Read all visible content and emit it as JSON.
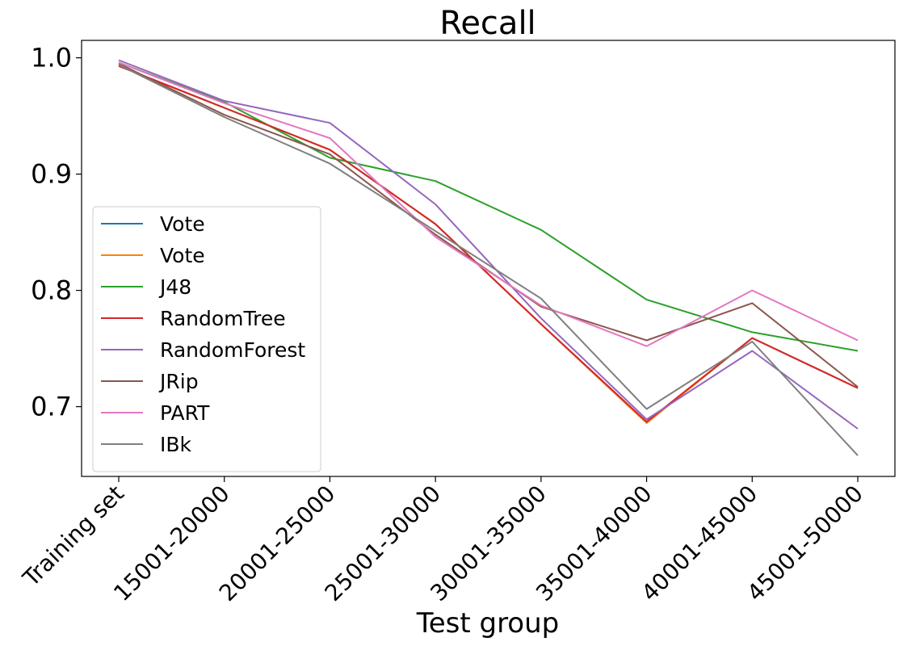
{
  "chart_data": {
    "type": "line",
    "title": "Recall",
    "xlabel": "Test group",
    "ylabel": "",
    "categories": [
      "Training set",
      "15001-20000",
      "20001-25000",
      "25001-30000",
      "30001-35000",
      "35001-40000",
      "40001-45000",
      "45001-50000"
    ],
    "ylim": [
      0.64,
      1.015
    ],
    "yticks": [
      0.7,
      0.8,
      0.9,
      1.0
    ],
    "ytick_labels": [
      "0.7",
      "0.8",
      "0.9",
      "1.0"
    ],
    "grid": false,
    "legend_position": "lower-left",
    "series": [
      {
        "name": "Vote",
        "color": "#1f77b4",
        "values": [
          0.993,
          0.957,
          0.921,
          0.857,
          0.771,
          0.686,
          0.759,
          0.716
        ]
      },
      {
        "name": "Vote",
        "color": "#ff7f0e",
        "values": [
          0.993,
          0.957,
          0.921,
          0.857,
          0.771,
          0.686,
          0.759,
          0.716
        ]
      },
      {
        "name": "J48",
        "color": "#2ca02c",
        "values": [
          0.996,
          0.962,
          0.914,
          0.894,
          0.852,
          0.792,
          0.764,
          0.748
        ]
      },
      {
        "name": "RandomTree",
        "color": "#d62728",
        "values": [
          0.993,
          0.957,
          0.921,
          0.857,
          0.771,
          0.687,
          0.759,
          0.716
        ]
      },
      {
        "name": "RandomForest",
        "color": "#9467bd",
        "values": [
          0.998,
          0.963,
          0.944,
          0.874,
          0.776,
          0.689,
          0.748,
          0.681
        ]
      },
      {
        "name": "JRip",
        "color": "#8c564b",
        "values": [
          0.995,
          0.951,
          0.917,
          0.848,
          0.786,
          0.757,
          0.789,
          0.717
        ]
      },
      {
        "name": "PART",
        "color": "#e377c2",
        "values": [
          0.996,
          0.961,
          0.931,
          0.846,
          0.787,
          0.752,
          0.8,
          0.757
        ]
      },
      {
        "name": "IBk",
        "color": "#7f7f7f",
        "values": [
          0.994,
          0.949,
          0.909,
          0.851,
          0.793,
          0.698,
          0.756,
          0.658
        ]
      }
    ]
  }
}
